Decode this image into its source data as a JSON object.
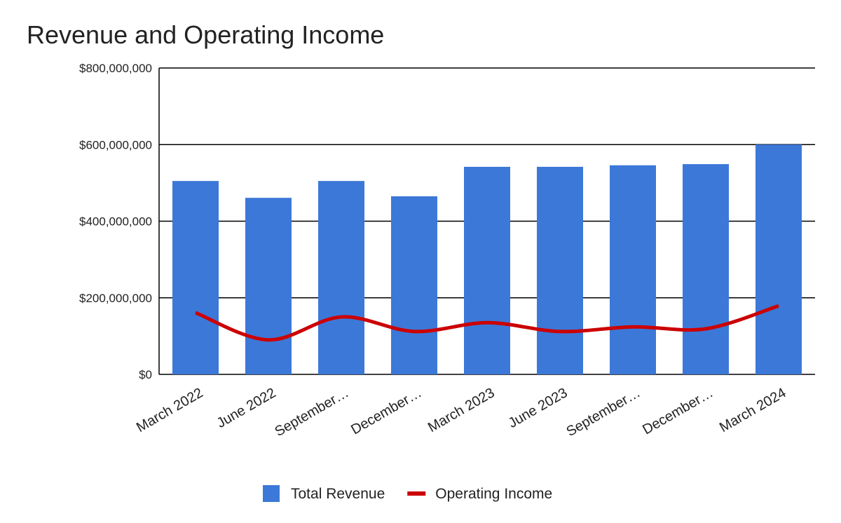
{
  "chart_data": {
    "type": "combo",
    "title": "Revenue and Operating Income",
    "categories": [
      "March 2022",
      "June 2022",
      "September…",
      "December…",
      "March 2023",
      "June 2023",
      "September…",
      "December…",
      "March 2024"
    ],
    "series": [
      {
        "name": "Total Revenue",
        "type": "bar",
        "color": "#3c78d8",
        "values": [
          505000000,
          461000000,
          505000000,
          465000000,
          542000000,
          542000000,
          546000000,
          549000000,
          600000000
        ]
      },
      {
        "name": "Operating Income",
        "type": "line",
        "color": "#cc0000",
        "values": [
          161000000,
          90000000,
          150000000,
          112000000,
          135000000,
          112000000,
          124000000,
          119000000,
          179000000
        ]
      }
    ],
    "ylim": [
      0,
      800000000
    ],
    "yticks": [
      {
        "value": 0,
        "label": "$0"
      },
      {
        "value": 200000000,
        "label": "$200,000,000"
      },
      {
        "value": 400000000,
        "label": "$400,000,000"
      },
      {
        "value": 600000000,
        "label": "$600,000,000"
      },
      {
        "value": 800000000,
        "label": "$800,000,000"
      }
    ],
    "grid": true,
    "legend": "bottom"
  }
}
